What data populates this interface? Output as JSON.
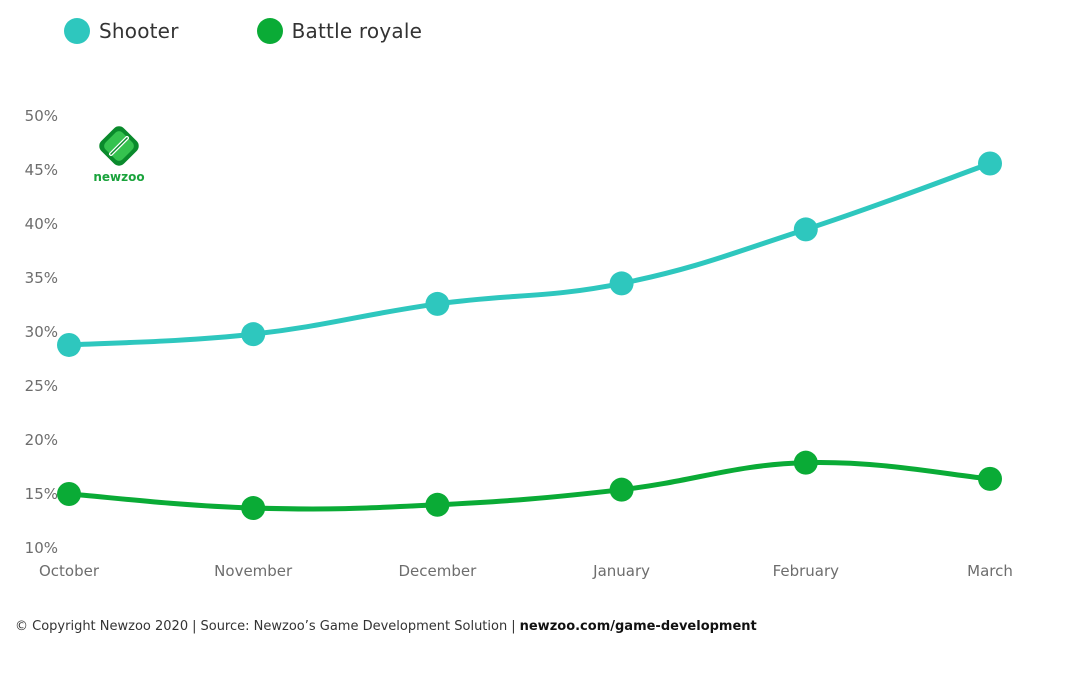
{
  "chart_data": {
    "type": "line",
    "title": "",
    "xlabel": "",
    "ylabel": "",
    "categories": [
      "October",
      "November",
      "December",
      "January",
      "February",
      "March"
    ],
    "ylim": [
      10,
      50
    ],
    "yticks": [
      "10%",
      "15%",
      "20%",
      "25%",
      "30%",
      "35%",
      "40%",
      "45%",
      "50%"
    ],
    "ytick_values": [
      10,
      15,
      20,
      25,
      30,
      35,
      40,
      45,
      50
    ],
    "grid": false,
    "legend_position": "top-left",
    "series": [
      {
        "name": "Shooter",
        "color": "#2ec7be",
        "values": [
          28.8,
          29.8,
          32.6,
          34.5,
          39.5,
          45.6
        ]
      },
      {
        "name": "Battle royale",
        "color": "#0aab36",
        "values": [
          15.0,
          13.7,
          14.0,
          15.4,
          17.9,
          16.4
        ]
      }
    ]
  },
  "legend": {
    "items": [
      {
        "label": "Shooter",
        "color": "#2ec7be"
      },
      {
        "label": "Battle royale",
        "color": "#0aab36"
      }
    ]
  },
  "logo": {
    "text": "newzoo",
    "icon": "newzoo-logo-icon"
  },
  "footer": {
    "copyright": "© Copyright Newzoo 2020",
    "separator": "|",
    "source": "Source: Newzoo’s Game Development Solution",
    "link": "newzoo.com/game-development"
  }
}
